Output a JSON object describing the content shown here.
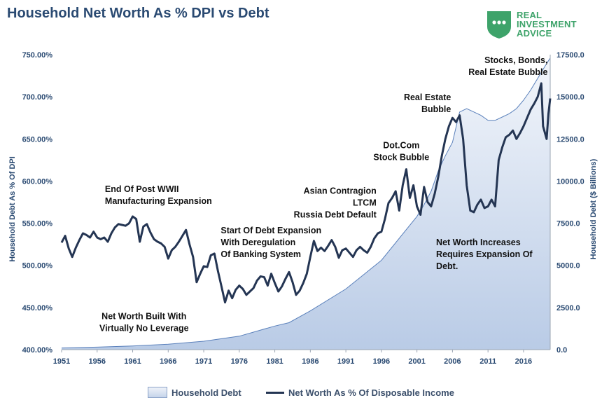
{
  "title": "Household Net Worth As % DPI vs Debt",
  "logo": {
    "line1": "REAL",
    "line2": "INVESTMENT",
    "line3": "ADVICE",
    "icon": "chat-bubble-shield-icon"
  },
  "colors": {
    "title": "#2a4a72",
    "axis_text": "#2a4a72",
    "line": "#243553",
    "area_top": "#f3f6fb",
    "area_bottom": "#b9cbe6",
    "area_edge": "#5a80bb",
    "logo": "#3ea36a"
  },
  "legend": {
    "area_label": "Household Debt",
    "line_label": "Net Worth As % Of Disposable Income"
  },
  "chart_data": {
    "type": "line",
    "title": "Household Net Worth As % DPI vs Debt",
    "xlabel": "",
    "ylabel_left": "Household Debt As % Of DPI",
    "ylabel_right": "Household Debt ($ Billions)",
    "xlim": [
      1951,
      2019.75
    ],
    "ylim_left": [
      4.0,
      7.5
    ],
    "ylim_right": [
      0,
      17500
    ],
    "x_ticks": [
      "1951",
      "1956",
      "1961",
      "1966",
      "1971",
      "1976",
      "1981",
      "1986",
      "1991",
      "1996",
      "2001",
      "2006",
      "2011",
      "2016"
    ],
    "y_ticks_left": [
      "400.00%",
      "450.00%",
      "500.00%",
      "550.00%",
      "600.00%",
      "650.00%",
      "700.00%",
      "750.00%"
    ],
    "y_ticks_right": [
      "0.0",
      "2500.0",
      "5000.0",
      "7500.0",
      "10000.0",
      "12500.0",
      "15000.0",
      "17500.0"
    ],
    "series": [
      {
        "name": "Net Worth As % Of Disposable Income",
        "axis": "left",
        "style": "line",
        "points": [
          [
            1951.0,
            5.27
          ],
          [
            1951.5,
            5.35
          ],
          [
            1952.0,
            5.2
          ],
          [
            1952.5,
            5.1
          ],
          [
            1953.0,
            5.21
          ],
          [
            1953.5,
            5.3
          ],
          [
            1954.0,
            5.38
          ],
          [
            1954.5,
            5.36
          ],
          [
            1955.0,
            5.33
          ],
          [
            1955.5,
            5.4
          ],
          [
            1956.0,
            5.33
          ],
          [
            1956.5,
            5.31
          ],
          [
            1957.0,
            5.33
          ],
          [
            1957.5,
            5.28
          ],
          [
            1958.0,
            5.38
          ],
          [
            1958.5,
            5.45
          ],
          [
            1959.0,
            5.49
          ],
          [
            1959.5,
            5.48
          ],
          [
            1960.0,
            5.47
          ],
          [
            1960.5,
            5.5
          ],
          [
            1961.0,
            5.58
          ],
          [
            1961.5,
            5.55
          ],
          [
            1962.0,
            5.28
          ],
          [
            1962.5,
            5.46
          ],
          [
            1963.0,
            5.49
          ],
          [
            1963.5,
            5.39
          ],
          [
            1964.0,
            5.31
          ],
          [
            1964.5,
            5.28
          ],
          [
            1965.0,
            5.26
          ],
          [
            1965.5,
            5.22
          ],
          [
            1966.0,
            5.08
          ],
          [
            1966.5,
            5.18
          ],
          [
            1967.0,
            5.22
          ],
          [
            1967.5,
            5.28
          ],
          [
            1968.0,
            5.35
          ],
          [
            1968.5,
            5.42
          ],
          [
            1969.0,
            5.25
          ],
          [
            1969.5,
            5.1
          ],
          [
            1970.0,
            4.8
          ],
          [
            1970.5,
            4.9
          ],
          [
            1971.0,
            4.99
          ],
          [
            1971.5,
            4.98
          ],
          [
            1972.0,
            5.12
          ],
          [
            1972.5,
            5.14
          ],
          [
            1973.0,
            4.93
          ],
          [
            1973.5,
            4.75
          ],
          [
            1974.0,
            4.56
          ],
          [
            1974.5,
            4.7
          ],
          [
            1975.0,
            4.61
          ],
          [
            1975.5,
            4.71
          ],
          [
            1976.0,
            4.76
          ],
          [
            1976.5,
            4.72
          ],
          [
            1977.0,
            4.65
          ],
          [
            1977.5,
            4.69
          ],
          [
            1978.0,
            4.73
          ],
          [
            1978.5,
            4.82
          ],
          [
            1979.0,
            4.87
          ],
          [
            1979.5,
            4.86
          ],
          [
            1980.0,
            4.76
          ],
          [
            1980.5,
            4.9
          ],
          [
            1981.0,
            4.79
          ],
          [
            1981.5,
            4.69
          ],
          [
            1982.0,
            4.75
          ],
          [
            1982.5,
            4.84
          ],
          [
            1983.0,
            4.92
          ],
          [
            1983.5,
            4.8
          ],
          [
            1984.0,
            4.65
          ],
          [
            1984.5,
            4.7
          ],
          [
            1985.0,
            4.79
          ],
          [
            1985.5,
            4.9
          ],
          [
            1986.0,
            5.1
          ],
          [
            1986.5,
            5.29
          ],
          [
            1987.0,
            5.17
          ],
          [
            1987.5,
            5.21
          ],
          [
            1988.0,
            5.17
          ],
          [
            1988.5,
            5.23
          ],
          [
            1989.0,
            5.3
          ],
          [
            1989.5,
            5.22
          ],
          [
            1990.0,
            5.09
          ],
          [
            1990.5,
            5.18
          ],
          [
            1991.0,
            5.2
          ],
          [
            1991.5,
            5.15
          ],
          [
            1992.0,
            5.1
          ],
          [
            1992.5,
            5.18
          ],
          [
            1993.0,
            5.22
          ],
          [
            1993.5,
            5.18
          ],
          [
            1994.0,
            5.15
          ],
          [
            1994.5,
            5.22
          ],
          [
            1995.0,
            5.32
          ],
          [
            1995.5,
            5.38
          ],
          [
            1996.0,
            5.4
          ],
          [
            1996.5,
            5.55
          ],
          [
            1997.0,
            5.74
          ],
          [
            1997.5,
            5.8
          ],
          [
            1998.0,
            5.88
          ],
          [
            1998.5,
            5.65
          ],
          [
            1999.0,
            5.95
          ],
          [
            1999.5,
            6.14
          ],
          [
            2000.0,
            5.8
          ],
          [
            2000.5,
            5.95
          ],
          [
            2001.0,
            5.7
          ],
          [
            2001.5,
            5.6
          ],
          [
            2002.0,
            5.93
          ],
          [
            2002.5,
            5.75
          ],
          [
            2003.0,
            5.7
          ],
          [
            2003.5,
            5.85
          ],
          [
            2004.0,
            6.05
          ],
          [
            2004.5,
            6.3
          ],
          [
            2005.0,
            6.5
          ],
          [
            2005.5,
            6.65
          ],
          [
            2006.0,
            6.75
          ],
          [
            2006.5,
            6.7
          ],
          [
            2007.0,
            6.78
          ],
          [
            2007.5,
            6.5
          ],
          [
            2008.0,
            5.95
          ],
          [
            2008.5,
            5.65
          ],
          [
            2009.0,
            5.63
          ],
          [
            2009.5,
            5.72
          ],
          [
            2010.0,
            5.78
          ],
          [
            2010.5,
            5.68
          ],
          [
            2011.0,
            5.7
          ],
          [
            2011.5,
            5.78
          ],
          [
            2012.0,
            5.7
          ],
          [
            2012.5,
            6.25
          ],
          [
            2013.0,
            6.4
          ],
          [
            2013.5,
            6.52
          ],
          [
            2014.0,
            6.55
          ],
          [
            2014.5,
            6.6
          ],
          [
            2015.0,
            6.5
          ],
          [
            2015.5,
            6.57
          ],
          [
            2016.0,
            6.65
          ],
          [
            2016.5,
            6.75
          ],
          [
            2017.0,
            6.85
          ],
          [
            2017.5,
            6.92
          ],
          [
            2018.0,
            7.0
          ],
          [
            2018.5,
            7.16
          ],
          [
            2018.75,
            6.65
          ],
          [
            2019.25,
            6.5
          ],
          [
            2019.5,
            6.8
          ],
          [
            2019.75,
            6.98
          ]
        ]
      },
      {
        "name": "Household Debt",
        "axis": "right",
        "style": "area",
        "points": [
          [
            1951,
            100
          ],
          [
            1956,
            150
          ],
          [
            1961,
            220
          ],
          [
            1966,
            320
          ],
          [
            1971,
            500
          ],
          [
            1976,
            800
          ],
          [
            1981,
            1400
          ],
          [
            1983,
            1600
          ],
          [
            1986,
            2300
          ],
          [
            1991,
            3600
          ],
          [
            1996,
            5300
          ],
          [
            2001,
            7900
          ],
          [
            2002,
            8600
          ],
          [
            2003,
            9400
          ],
          [
            2004,
            10600
          ],
          [
            2005,
            11500
          ],
          [
            2006,
            12300
          ],
          [
            2007,
            14100
          ],
          [
            2008,
            14300
          ],
          [
            2009,
            14100
          ],
          [
            2010,
            13900
          ],
          [
            2011,
            13600
          ],
          [
            2012,
            13600
          ],
          [
            2013,
            13800
          ],
          [
            2014,
            14000
          ],
          [
            2015,
            14300
          ],
          [
            2016,
            14800
          ],
          [
            2017,
            15400
          ],
          [
            2018,
            16100
          ],
          [
            2019,
            16800
          ],
          [
            2019.75,
            17300
          ]
        ]
      }
    ],
    "annotations": [
      {
        "id": "built",
        "lines": [
          "Net Worth Built With",
          "Virtually No Leverage"
        ]
      },
      {
        "id": "wwii",
        "lines": [
          "End Of Post WWII",
          "Manufacturing Expansion"
        ]
      },
      {
        "id": "debt-start",
        "lines": [
          "Start Of Debt Expansion",
          "With Deregulation",
          "Of Banking System"
        ]
      },
      {
        "id": "asian",
        "lines": [
          "Asian Contragion",
          "LTCM",
          "Russia Debt Default"
        ]
      },
      {
        "id": "dotcom",
        "lines": [
          "Dot.Com",
          "Stock Bubble"
        ]
      },
      {
        "id": "realestate",
        "lines": [
          "Real Estate",
          "Bubble"
        ]
      },
      {
        "id": "stocks",
        "lines": [
          "Stocks, Bonds,",
          "Real Estate Bubble"
        ]
      },
      {
        "id": "networth",
        "lines": [
          "Net Worth Increases",
          "Requires Expansion Of",
          "Debt."
        ]
      }
    ]
  }
}
